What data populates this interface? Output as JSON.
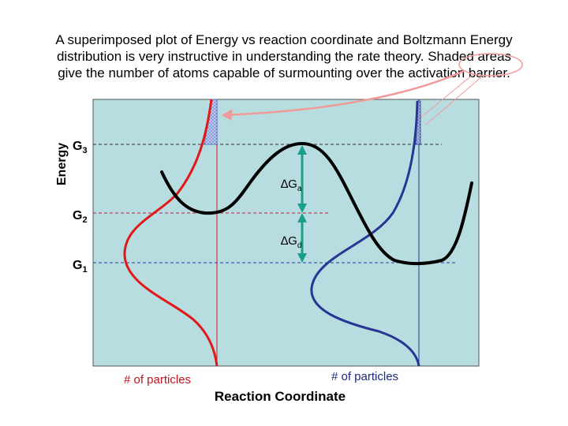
{
  "caption": {
    "line1": "A superimposed plot of Energy vs reaction coordinate and Boltzmann Energy",
    "line2": "distribution is very instructive in understanding the rate theory. Shaded areas",
    "line3": "give the number of atoms capable of surmounting over the activation barrier."
  },
  "axes": {
    "y_label": "Energy",
    "x_label": "Reaction Coordinate"
  },
  "levels": {
    "g3": {
      "base": "G",
      "sub": "3"
    },
    "g2": {
      "base": "G",
      "sub": "2"
    },
    "g1": {
      "base": "G",
      "sub": "1"
    }
  },
  "deltas": {
    "a": {
      "base": "∆G",
      "sub": "a"
    },
    "d": {
      "base": "∆G",
      "sub": "d"
    }
  },
  "particles": {
    "left_label": "# of particles",
    "right_label": "# of particles"
  },
  "colors": {
    "panel": "#b7dde1",
    "energy_curve": "#000000",
    "left_distribution": "#e01818",
    "right_distribution": "#283593",
    "g3_line": "#333333",
    "g2_line": "#c0203a",
    "g1_line": "#2a3a9a",
    "arrow": "#1a9f8a",
    "callout": "#f19a9a"
  }
}
